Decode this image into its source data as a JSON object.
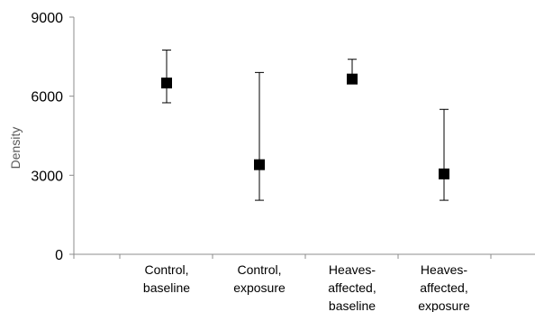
{
  "chart_data": {
    "type": "scatter",
    "title": "",
    "xlabel": "",
    "ylabel": "Density",
    "ylim": [
      0,
      9000
    ],
    "yticks": [
      0,
      3000,
      6000,
      9000
    ],
    "ytick_labels": [
      "0",
      "3000",
      "6000",
      "9000"
    ],
    "grid": false,
    "legend": "none",
    "marker": "square",
    "marker_color": "#000000",
    "categories": [
      [
        "Control,",
        "baseline"
      ],
      [
        "Control,",
        "exposure"
      ],
      [
        "Heaves-",
        "affected,",
        "baseline"
      ],
      [
        "Heaves-",
        "affected,",
        "exposure"
      ]
    ],
    "values": [
      6500,
      3400,
      6650,
      3050
    ],
    "error_low": [
      5750,
      2050,
      6650,
      2050
    ],
    "error_high": [
      7750,
      6900,
      7400,
      5500
    ]
  }
}
